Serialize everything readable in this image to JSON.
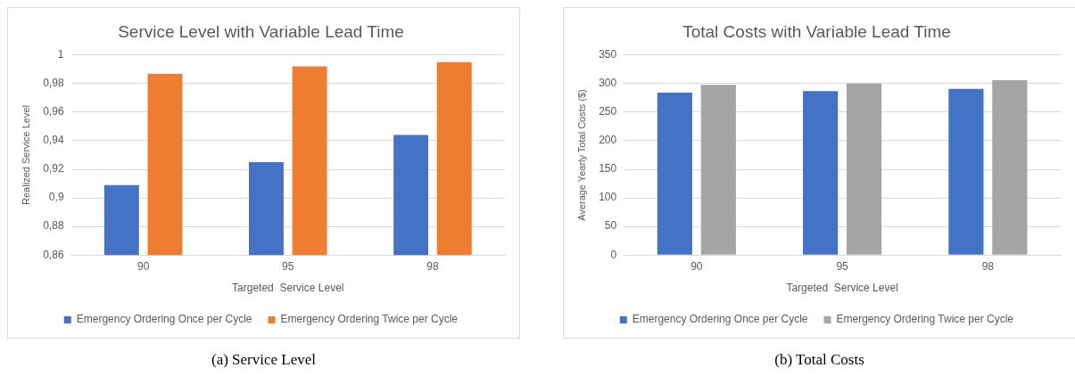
{
  "chart_data": [
    {
      "type": "bar",
      "title": "Service Level with Variable Lead Time",
      "xlabel": "Targeted  Service Level",
      "ylabel": "Realized Service Level",
      "categories": [
        "90",
        "95",
        "98"
      ],
      "series": [
        {
          "name": "Emergency Ordering Once per Cycle",
          "color": "#4472c4",
          "values": [
            0.909,
            0.925,
            0.944
          ]
        },
        {
          "name": "Emergency Ordering Twice per Cycle",
          "color": "#ed7d31",
          "values": [
            0.987,
            0.992,
            0.995
          ]
        }
      ],
      "ylim": [
        0.86,
        1
      ],
      "yticks": [
        {
          "value": 0.86,
          "label": "0,86"
        },
        {
          "value": 0.88,
          "label": "0,88"
        },
        {
          "value": 0.9,
          "label": "0,9"
        },
        {
          "value": 0.92,
          "label": "0,92"
        },
        {
          "value": 0.94,
          "label": "0,94"
        },
        {
          "value": 0.96,
          "label": "0,96"
        },
        {
          "value": 0.98,
          "label": "0,98"
        },
        {
          "value": 1,
          "label": "1"
        }
      ],
      "grid": "y",
      "legend": "bottom",
      "annotations": [
        "(a)  Service Level"
      ]
    },
    {
      "type": "bar",
      "title": "Total Costs with Variable Lead Time",
      "xlabel": "Targeted  Service Level",
      "ylabel": "Average Yearly Total Costs ($)",
      "categories": [
        "90",
        "95",
        "98"
      ],
      "series": [
        {
          "name": "Emergency Ordering Once per Cycle",
          "color": "#4472c4",
          "values": [
            284,
            287,
            291
          ]
        },
        {
          "name": "Emergency Ordering Twice per Cycle",
          "color": "#a5a5a5",
          "values": [
            298,
            300,
            306
          ]
        }
      ],
      "ylim": [
        0,
        350
      ],
      "yticks": [
        0,
        50,
        100,
        150,
        200,
        250,
        300,
        350
      ],
      "grid": "y",
      "legend": "bottom",
      "annotations": [
        "(b)  Total Costs"
      ]
    }
  ]
}
